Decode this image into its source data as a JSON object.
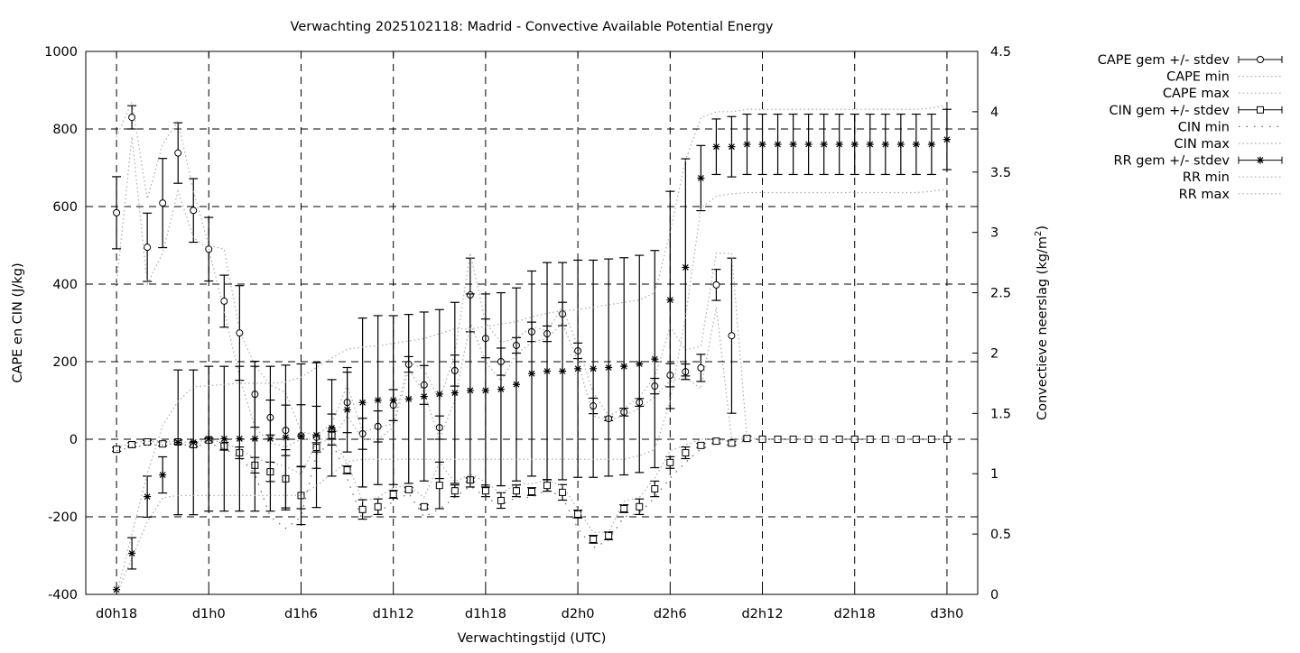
{
  "chart_data": {
    "type": "line",
    "title": "Verwachting 2025102118: Madrid - Convective Available Potential Energy",
    "xlabel": "Verwachtingstijd (UTC)",
    "ylabel": "CAPE en CIN (J/kg)",
    "y2label": "Convectieve neerslag (kg/m",
    "y2label_sup": "2",
    "y2label_end": ")",
    "xlim_hours": [
      16,
      74
    ],
    "ylim": [
      -400,
      1000
    ],
    "y2lim": [
      0,
      4.5
    ],
    "grid": true,
    "legend_position": "outside-top-right",
    "x_ticks": [
      {
        "hour": 18,
        "label": "d0h18"
      },
      {
        "hour": 24,
        "label": "d1h0"
      },
      {
        "hour": 30,
        "label": "d1h6"
      },
      {
        "hour": 36,
        "label": "d1h12"
      },
      {
        "hour": 42,
        "label": "d1h18"
      },
      {
        "hour": 48,
        "label": "d2h0"
      },
      {
        "hour": 54,
        "label": "d2h6"
      },
      {
        "hour": 60,
        "label": "d2h12"
      },
      {
        "hour": 66,
        "label": "d2h18"
      },
      {
        "hour": 72,
        "label": "d3h0"
      }
    ],
    "y_ticks": [
      "-400",
      "-200",
      "0",
      "200",
      "400",
      "600",
      "800",
      "1000"
    ],
    "y2_ticks": [
      "0",
      "0.5",
      "1",
      "1.5",
      "2",
      "2.5",
      "3",
      "3.5",
      "4",
      "4.5"
    ],
    "hour_start": 18,
    "series": [
      {
        "name": "CAPE gem +/- stdev",
        "axis": "y",
        "style": "errorbars-circle",
        "values": [
          584,
          830,
          495,
          609,
          738,
          590,
          490,
          356,
          274,
          116,
          56,
          23,
          9,
          5,
          25,
          95,
          14,
          33,
          88,
          193,
          140,
          30,
          177,
          372,
          260,
          200,
          242,
          277,
          272,
          323,
          228,
          86,
          53,
          70,
          95,
          137,
          165,
          174,
          184,
          398,
          267
        ],
        "stdev": [
          93,
          30,
          88,
          115,
          78,
          82,
          82,
          67,
          122,
          85,
          45,
          65,
          80,
          80,
          40,
          78,
          40,
          40,
          40,
          20,
          50,
          30,
          40,
          95,
          50,
          35,
          20,
          25,
          20,
          30,
          20,
          20,
          5,
          10,
          10,
          20,
          30,
          20,
          35,
          40,
          200
        ]
      },
      {
        "name": "CAPE min",
        "axis": "y",
        "style": "dotted",
        "values": [
          400,
          780,
          400,
          480,
          640,
          520,
          490,
          330,
          160,
          30,
          -10,
          -20,
          0,
          0,
          0,
          60,
          0,
          0,
          30,
          180,
          120,
          0,
          100,
          300,
          200,
          150,
          220,
          250,
          260,
          300,
          200,
          60,
          50,
          60,
          80,
          110,
          150,
          160,
          130,
          340,
          0,
          0
        ]
      },
      {
        "name": "CAPE max",
        "axis": "y",
        "style": "dotted",
        "values": [
          780,
          870,
          620,
          760,
          820,
          640,
          500,
          490,
          280,
          190,
          140,
          120,
          20,
          10,
          40,
          140,
          20,
          30,
          40,
          200,
          180,
          100,
          220,
          480,
          300,
          250,
          260,
          290,
          280,
          340,
          240,
          120,
          60,
          80,
          110,
          160,
          290,
          230,
          240,
          480,
          480,
          0
        ]
      },
      {
        "name": "CIN gem +/- stdev",
        "axis": "y",
        "style": "errorbars-square",
        "values": [
          -26,
          -14,
          -7,
          -12,
          -7,
          -14,
          -2,
          -18,
          -35,
          -67,
          -84,
          -102,
          -145,
          -21,
          10,
          -79,
          -181,
          -174,
          -142,
          -130,
          -174,
          -119,
          -133,
          -105,
          -133,
          -158,
          -133,
          -135,
          -119,
          -137,
          -193,
          -258,
          -249,
          -179,
          -174,
          -128,
          -60,
          -35,
          -16,
          -5,
          -10,
          2,
          0,
          0,
          0,
          0,
          0,
          0,
          0,
          0,
          0,
          0,
          0,
          0,
          0
        ],
        "stdev": [
          5,
          5,
          4,
          5,
          5,
          5,
          5,
          10,
          15,
          20,
          25,
          75,
          75,
          12,
          10,
          10,
          25,
          20,
          10,
          5,
          5,
          60,
          15,
          5,
          15,
          20,
          15,
          10,
          15,
          20,
          10,
          10,
          10,
          10,
          20,
          20,
          15,
          15,
          5,
          5,
          5,
          5,
          0,
          0,
          0,
          0,
          0,
          0,
          0,
          0,
          0,
          0,
          0,
          0,
          0
        ]
      },
      {
        "name": "CIN min",
        "axis": "y",
        "style": "dotted-sparse",
        "values": [
          -30,
          -20,
          -15,
          -15,
          -10,
          -20,
          -10,
          -25,
          -45,
          -90,
          -200,
          -230,
          -200,
          -40,
          -5,
          -100,
          -210,
          -190,
          -160,
          -140,
          -200,
          -180,
          -150,
          -120,
          -150,
          -170,
          -150,
          -150,
          -130,
          -150,
          -230,
          -280,
          -260,
          -200,
          -190,
          -150,
          -100,
          -60,
          -25,
          -10,
          -15,
          -2,
          0,
          0,
          0,
          0,
          0,
          0,
          0,
          0,
          0,
          0,
          0,
          0,
          0
        ]
      },
      {
        "name": "CIN max",
        "axis": "y",
        "style": "dotted",
        "values": [
          -20,
          -10,
          -5,
          -8,
          -5,
          -10,
          0,
          -10,
          -25,
          -50,
          -60,
          -70,
          -90,
          -10,
          0,
          -60,
          -160,
          -150,
          -125,
          -120,
          -150,
          -60,
          -110,
          -90,
          -110,
          -140,
          -115,
          -115,
          -105,
          -120,
          -180,
          -240,
          -240,
          -160,
          -150,
          -100,
          -30,
          -15,
          0,
          0,
          -5,
          5,
          0,
          0,
          0,
          0,
          0,
          0,
          0,
          0,
          0,
          0,
          0,
          0,
          0
        ]
      },
      {
        "name": "RR gem +/- stdev",
        "axis": "y2",
        "style": "errorbars-star",
        "values": [
          0.04,
          0.34,
          0.81,
          0.99,
          1.26,
          1.26,
          1.29,
          1.29,
          1.29,
          1.29,
          1.29,
          1.3,
          1.31,
          1.32,
          1.38,
          1.53,
          1.59,
          1.61,
          1.61,
          1.62,
          1.64,
          1.66,
          1.67,
          1.69,
          1.69,
          1.7,
          1.74,
          1.83,
          1.85,
          1.85,
          1.87,
          1.87,
          1.88,
          1.89,
          1.91,
          1.95,
          2.44,
          2.71,
          3.45,
          3.71,
          3.71,
          3.73,
          3.73,
          3.73,
          3.73,
          3.73,
          3.73,
          3.73,
          3.73,
          3.73,
          3.73,
          3.73,
          3.73,
          3.73,
          3.77
        ],
        "stdev": [
          0,
          0.13,
          0.17,
          0.15,
          0.6,
          0.6,
          0.6,
          0.6,
          0.6,
          0.6,
          0.6,
          0.6,
          0.6,
          0.6,
          0.4,
          0.35,
          0.7,
          0.7,
          0.7,
          0.7,
          0.7,
          0.7,
          0.75,
          0.8,
          0.8,
          0.8,
          0.8,
          0.85,
          0.9,
          0.9,
          0.9,
          0.9,
          0.9,
          0.9,
          0.9,
          0.9,
          0.9,
          0.9,
          0.27,
          0.23,
          0.25,
          0.25,
          0.25,
          0.25,
          0.25,
          0.25,
          0.25,
          0.25,
          0.25,
          0.25,
          0.25,
          0.25,
          0.25,
          0.25,
          0.25
        ]
      },
      {
        "name": "RR min",
        "axis": "y2",
        "style": "dotted",
        "values": [
          0,
          0.3,
          0.6,
          0.8,
          0.82,
          0.82,
          0.82,
          0.82,
          0.82,
          0.82,
          0.82,
          0.82,
          0.82,
          0.9,
          1.0,
          1.1,
          1.12,
          1.12,
          1.12,
          1.12,
          1.12,
          1.12,
          1.12,
          1.12,
          1.12,
          1.12,
          1.12,
          1.12,
          1.12,
          1.12,
          1.12,
          1.12,
          1.12,
          1.12,
          1.15,
          1.2,
          1.6,
          2.3,
          3.2,
          3.3,
          3.32,
          3.33,
          3.33,
          3.33,
          3.33,
          3.33,
          3.33,
          3.33,
          3.33,
          3.33,
          3.33,
          3.33,
          3.33,
          3.34,
          3.36
        ]
      },
      {
        "name": "RR max",
        "axis": "y2",
        "style": "dotted",
        "values": [
          0,
          0.5,
          1.0,
          1.4,
          1.6,
          1.72,
          1.73,
          1.74,
          1.75,
          1.75,
          1.75,
          1.76,
          1.8,
          1.88,
          1.96,
          2.03,
          2.05,
          2.06,
          2.08,
          2.1,
          2.12,
          2.16,
          2.2,
          2.2,
          2.22,
          2.24,
          2.26,
          2.3,
          2.33,
          2.35,
          2.36,
          2.38,
          2.4,
          2.42,
          2.44,
          2.5,
          3.0,
          3.6,
          3.95,
          4.0,
          4.0,
          4.02,
          4.02,
          4.02,
          4.02,
          4.02,
          4.02,
          4.02,
          4.02,
          4.02,
          4.02,
          4.02,
          4.02,
          4.03,
          4.05
        ]
      }
    ]
  }
}
